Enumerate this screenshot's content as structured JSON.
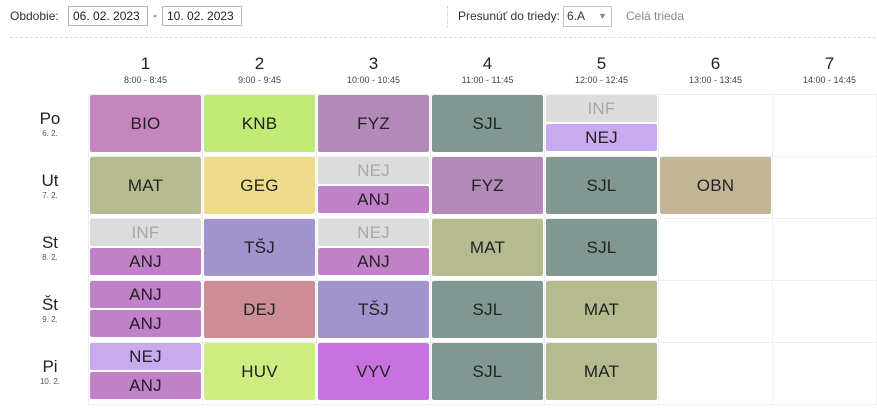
{
  "toolbar": {
    "period_label": "Obdobie:",
    "date_from": "06. 02. 2023",
    "date_separator": "-",
    "date_to": "10. 02. 2023",
    "move_label": "Presunúť do triedy:",
    "class_select": "6.A",
    "whole_class_link": "Celá trieda"
  },
  "colors": {
    "BIO": "#c585bd",
    "KNB": "#c0ea75",
    "FYZ": "#b389b9",
    "SJL": "#819892",
    "INF": "#dcdcdc",
    "NEJ": "#c8aaee",
    "MAT": "#b5ba8f",
    "GEG": "#efdc8a",
    "ANJ": "#c081c8",
    "OBN": "#c4b597",
    "TSJ": "#a193cb",
    "DEJ": "#cc8d97",
    "HUV": "#cfec82",
    "VYV": "#c872e2"
  },
  "periods": [
    {
      "num": "1",
      "time": "8:00 - 8:45"
    },
    {
      "num": "2",
      "time": "9:00 - 9:45"
    },
    {
      "num": "3",
      "time": "10:00 - 10:45"
    },
    {
      "num": "4",
      "time": "11:00 - 11:45"
    },
    {
      "num": "5",
      "time": "12:00 - 12:45"
    },
    {
      "num": "6",
      "time": "13:00 - 13:45"
    },
    {
      "num": "7",
      "time": "14:00 - 14:45"
    }
  ],
  "days": [
    {
      "day": "Po",
      "date": "6. 2."
    },
    {
      "day": "Ut",
      "date": "7. 2."
    },
    {
      "day": "St",
      "date": "8. 2."
    },
    {
      "day": "Št",
      "date": "9. 2."
    },
    {
      "day": "Pi",
      "date": "10. 2."
    }
  ],
  "lessons": [
    {
      "day": 0,
      "period": 0,
      "part": "full",
      "subject": "BIO",
      "color": "BIO"
    },
    {
      "day": 0,
      "period": 1,
      "part": "full",
      "subject": "KNB",
      "color": "KNB"
    },
    {
      "day": 0,
      "period": 2,
      "part": "full",
      "subject": "FYZ",
      "color": "FYZ"
    },
    {
      "day": 0,
      "period": 3,
      "part": "full",
      "subject": "SJL",
      "color": "SJL"
    },
    {
      "day": 0,
      "period": 4,
      "part": "top",
      "subject": "INF",
      "color": "INF",
      "dim": true
    },
    {
      "day": 0,
      "period": 4,
      "part": "bottom",
      "subject": "NEJ",
      "color": "NEJ"
    },
    {
      "day": 1,
      "period": 0,
      "part": "full",
      "subject": "MAT",
      "color": "MAT"
    },
    {
      "day": 1,
      "period": 1,
      "part": "full",
      "subject": "GEG",
      "color": "GEG"
    },
    {
      "day": 1,
      "period": 2,
      "part": "top",
      "subject": "NEJ",
      "color": "INF",
      "dim": true
    },
    {
      "day": 1,
      "period": 2,
      "part": "bottom",
      "subject": "ANJ",
      "color": "ANJ"
    },
    {
      "day": 1,
      "period": 3,
      "part": "full",
      "subject": "FYZ",
      "color": "FYZ"
    },
    {
      "day": 1,
      "period": 4,
      "part": "full",
      "subject": "SJL",
      "color": "SJL"
    },
    {
      "day": 1,
      "period": 5,
      "part": "full",
      "subject": "OBN",
      "color": "OBN"
    },
    {
      "day": 2,
      "period": 0,
      "part": "top",
      "subject": "INF",
      "color": "INF",
      "dim": true
    },
    {
      "day": 2,
      "period": 0,
      "part": "bottom",
      "subject": "ANJ",
      "color": "ANJ"
    },
    {
      "day": 2,
      "period": 1,
      "part": "full",
      "subject": "TŠJ",
      "color": "TSJ"
    },
    {
      "day": 2,
      "period": 2,
      "part": "top",
      "subject": "NEJ",
      "color": "INF",
      "dim": true
    },
    {
      "day": 2,
      "period": 2,
      "part": "bottom",
      "subject": "ANJ",
      "color": "ANJ"
    },
    {
      "day": 2,
      "period": 3,
      "part": "full",
      "subject": "MAT",
      "color": "MAT"
    },
    {
      "day": 2,
      "period": 4,
      "part": "full",
      "subject": "SJL",
      "color": "SJL"
    },
    {
      "day": 3,
      "period": 0,
      "part": "top",
      "subject": "ANJ",
      "color": "ANJ"
    },
    {
      "day": 3,
      "period": 0,
      "part": "bottom",
      "subject": "ANJ",
      "color": "ANJ"
    },
    {
      "day": 3,
      "period": 1,
      "part": "full",
      "subject": "DEJ",
      "color": "DEJ"
    },
    {
      "day": 3,
      "period": 2,
      "part": "full",
      "subject": "TŠJ",
      "color": "TSJ"
    },
    {
      "day": 3,
      "period": 3,
      "part": "full",
      "subject": "SJL",
      "color": "SJL"
    },
    {
      "day": 3,
      "period": 4,
      "part": "full",
      "subject": "MAT",
      "color": "MAT"
    },
    {
      "day": 4,
      "period": 0,
      "part": "top",
      "subject": "NEJ",
      "color": "NEJ"
    },
    {
      "day": 4,
      "period": 0,
      "part": "bottom",
      "subject": "ANJ",
      "color": "ANJ"
    },
    {
      "day": 4,
      "period": 1,
      "part": "full",
      "subject": "HUV",
      "color": "HUV"
    },
    {
      "day": 4,
      "period": 2,
      "part": "full",
      "subject": "VYV",
      "color": "VYV"
    },
    {
      "day": 4,
      "period": 3,
      "part": "full",
      "subject": "SJL",
      "color": "SJL"
    },
    {
      "day": 4,
      "period": 4,
      "part": "full",
      "subject": "MAT",
      "color": "MAT"
    }
  ]
}
